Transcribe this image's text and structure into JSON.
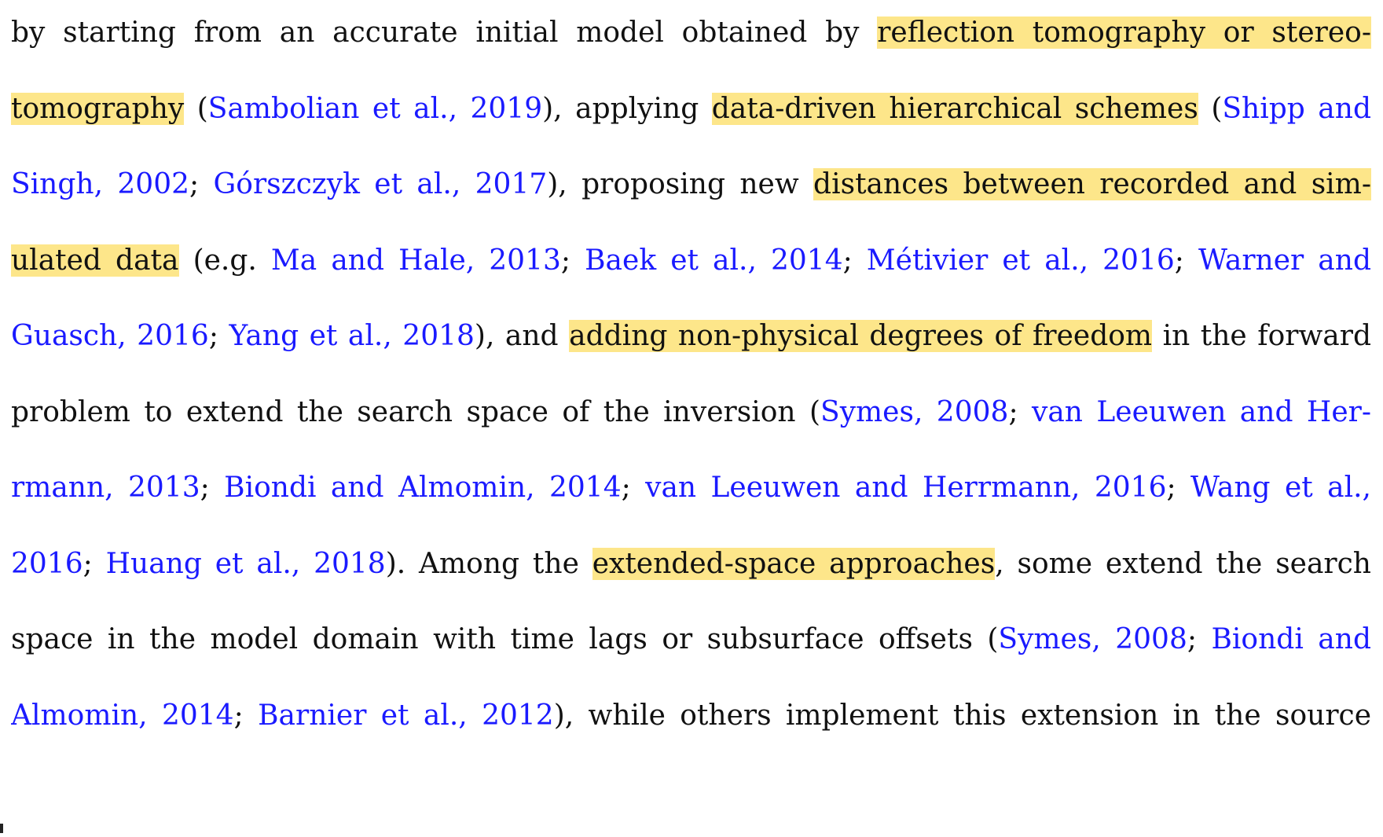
{
  "lines": [
    [
      {
        "t": "by starting from an accurate initial model obtained by ",
        "k": "text"
      },
      {
        "t": "reflection tomography or stereo-",
        "k": "hl"
      }
    ],
    [
      {
        "t": "tomography",
        "k": "hl"
      },
      {
        "t": " (",
        "k": "text"
      },
      {
        "t": "Sambolian et al., 2019",
        "k": "cite"
      },
      {
        "t": "), applying ",
        "k": "text"
      },
      {
        "t": "data-driven hierarchical schemes",
        "k": "hl"
      },
      {
        "t": " (",
        "k": "text"
      },
      {
        "t": "Shipp and",
        "k": "cite"
      }
    ],
    [
      {
        "t": "Singh, 2002",
        "k": "cite"
      },
      {
        "t": "; ",
        "k": "text"
      },
      {
        "t": "Górszczyk et al., 2017",
        "k": "cite"
      },
      {
        "t": "), proposing new ",
        "k": "text"
      },
      {
        "t": "distances between recorded and sim-",
        "k": "hl"
      }
    ],
    [
      {
        "t": "ulated data",
        "k": "hl"
      },
      {
        "t": " (e.g. ",
        "k": "text"
      },
      {
        "t": "Ma and Hale, 2013",
        "k": "cite"
      },
      {
        "t": "; ",
        "k": "text"
      },
      {
        "t": "Baek et al., 2014",
        "k": "cite"
      },
      {
        "t": "; ",
        "k": "text"
      },
      {
        "t": "Métivier et al., 2016",
        "k": "cite"
      },
      {
        "t": "; ",
        "k": "text"
      },
      {
        "t": "Warner and",
        "k": "cite"
      }
    ],
    [
      {
        "t": "Guasch, 2016",
        "k": "cite"
      },
      {
        "t": "; ",
        "k": "text"
      },
      {
        "t": "Yang et al., 2018",
        "k": "cite"
      },
      {
        "t": "), and ",
        "k": "text"
      },
      {
        "t": "adding non-physical degrees of freedom",
        "k": "hl"
      },
      {
        "t": " in the forward",
        "k": "text"
      }
    ],
    [
      {
        "t": "problem to extend the search space of the inversion (",
        "k": "text"
      },
      {
        "t": "Symes, 2008",
        "k": "cite"
      },
      {
        "t": "; ",
        "k": "text"
      },
      {
        "t": "van Leeuwen and Her-",
        "k": "cite"
      }
    ],
    [
      {
        "t": "rmann, 2013",
        "k": "cite"
      },
      {
        "t": "; ",
        "k": "text"
      },
      {
        "t": "Biondi and Almomin, 2014",
        "k": "cite"
      },
      {
        "t": "; ",
        "k": "text"
      },
      {
        "t": "van Leeuwen and Herrmann, 2016",
        "k": "cite"
      },
      {
        "t": "; ",
        "k": "text"
      },
      {
        "t": "Wang et al.,",
        "k": "cite"
      }
    ],
    [
      {
        "t": "2016",
        "k": "cite"
      },
      {
        "t": "; ",
        "k": "text"
      },
      {
        "t": "Huang et al., 2018",
        "k": "cite"
      },
      {
        "t": "). Among the ",
        "k": "text"
      },
      {
        "t": "extended-space approaches",
        "k": "hl"
      },
      {
        "t": ", some extend the search",
        "k": "text"
      }
    ],
    [
      {
        "t": "space in the model domain with time lags or subsurface offsets (",
        "k": "text"
      },
      {
        "t": "Symes, 2008",
        "k": "cite"
      },
      {
        "t": "; ",
        "k": "text"
      },
      {
        "t": "Biondi and",
        "k": "cite"
      }
    ],
    [
      {
        "t": "Almomin, 2014",
        "k": "cite"
      },
      {
        "t": "; ",
        "k": "text"
      },
      {
        "t": "Barnier et al., 2012",
        "k": "cite"
      },
      {
        "t": "), while others implement this extension in the source",
        "k": "text"
      }
    ]
  ],
  "colors": {
    "text": "#111111",
    "citation": "#1a1aff",
    "highlight": "#fde68a",
    "background": "#ffffff"
  }
}
